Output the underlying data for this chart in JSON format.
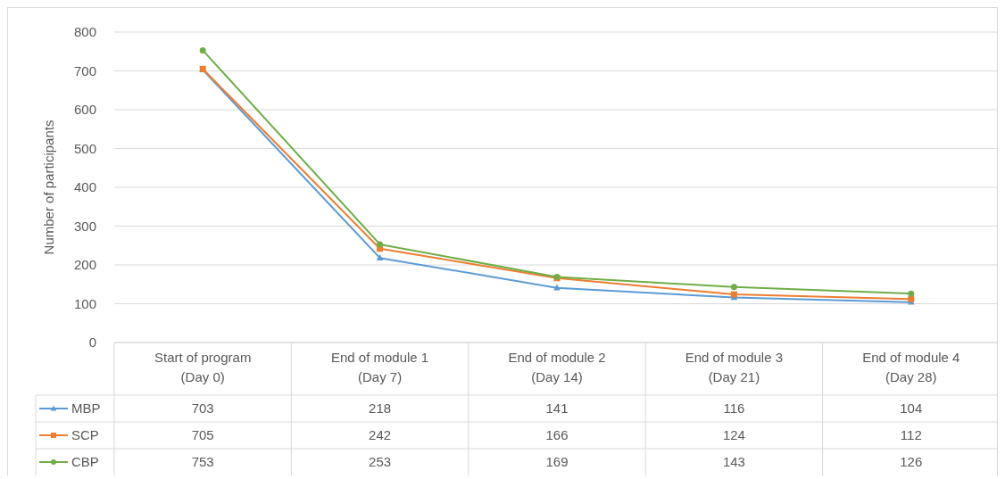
{
  "chart_data": {
    "type": "line",
    "ylabel": "Number of participants",
    "categories": [
      "Start of program (Day 0)",
      "End of module 1 (Day 7)",
      "End of module 2 (Day 14)",
      "End of module 3 (Day 21)",
      "End of module 4 (Day 28)"
    ],
    "series": [
      {
        "name": "MBP",
        "color": "#5b9bd5",
        "marker": "triangle",
        "values": [
          703,
          218,
          141,
          116,
          104
        ]
      },
      {
        "name": "SCP",
        "color": "#ed7d31",
        "marker": "square",
        "values": [
          705,
          242,
          166,
          124,
          112
        ]
      },
      {
        "name": "CBP",
        "color": "#70ad47",
        "marker": "circle",
        "values": [
          753,
          253,
          169,
          143,
          126
        ]
      }
    ],
    "ylim": [
      0,
      800
    ],
    "yticks": [
      0,
      100,
      200,
      300,
      400,
      500,
      600,
      700,
      800
    ],
    "grid": "y",
    "legend": "bottom",
    "data_labels": true,
    "line_style": "solid"
  }
}
